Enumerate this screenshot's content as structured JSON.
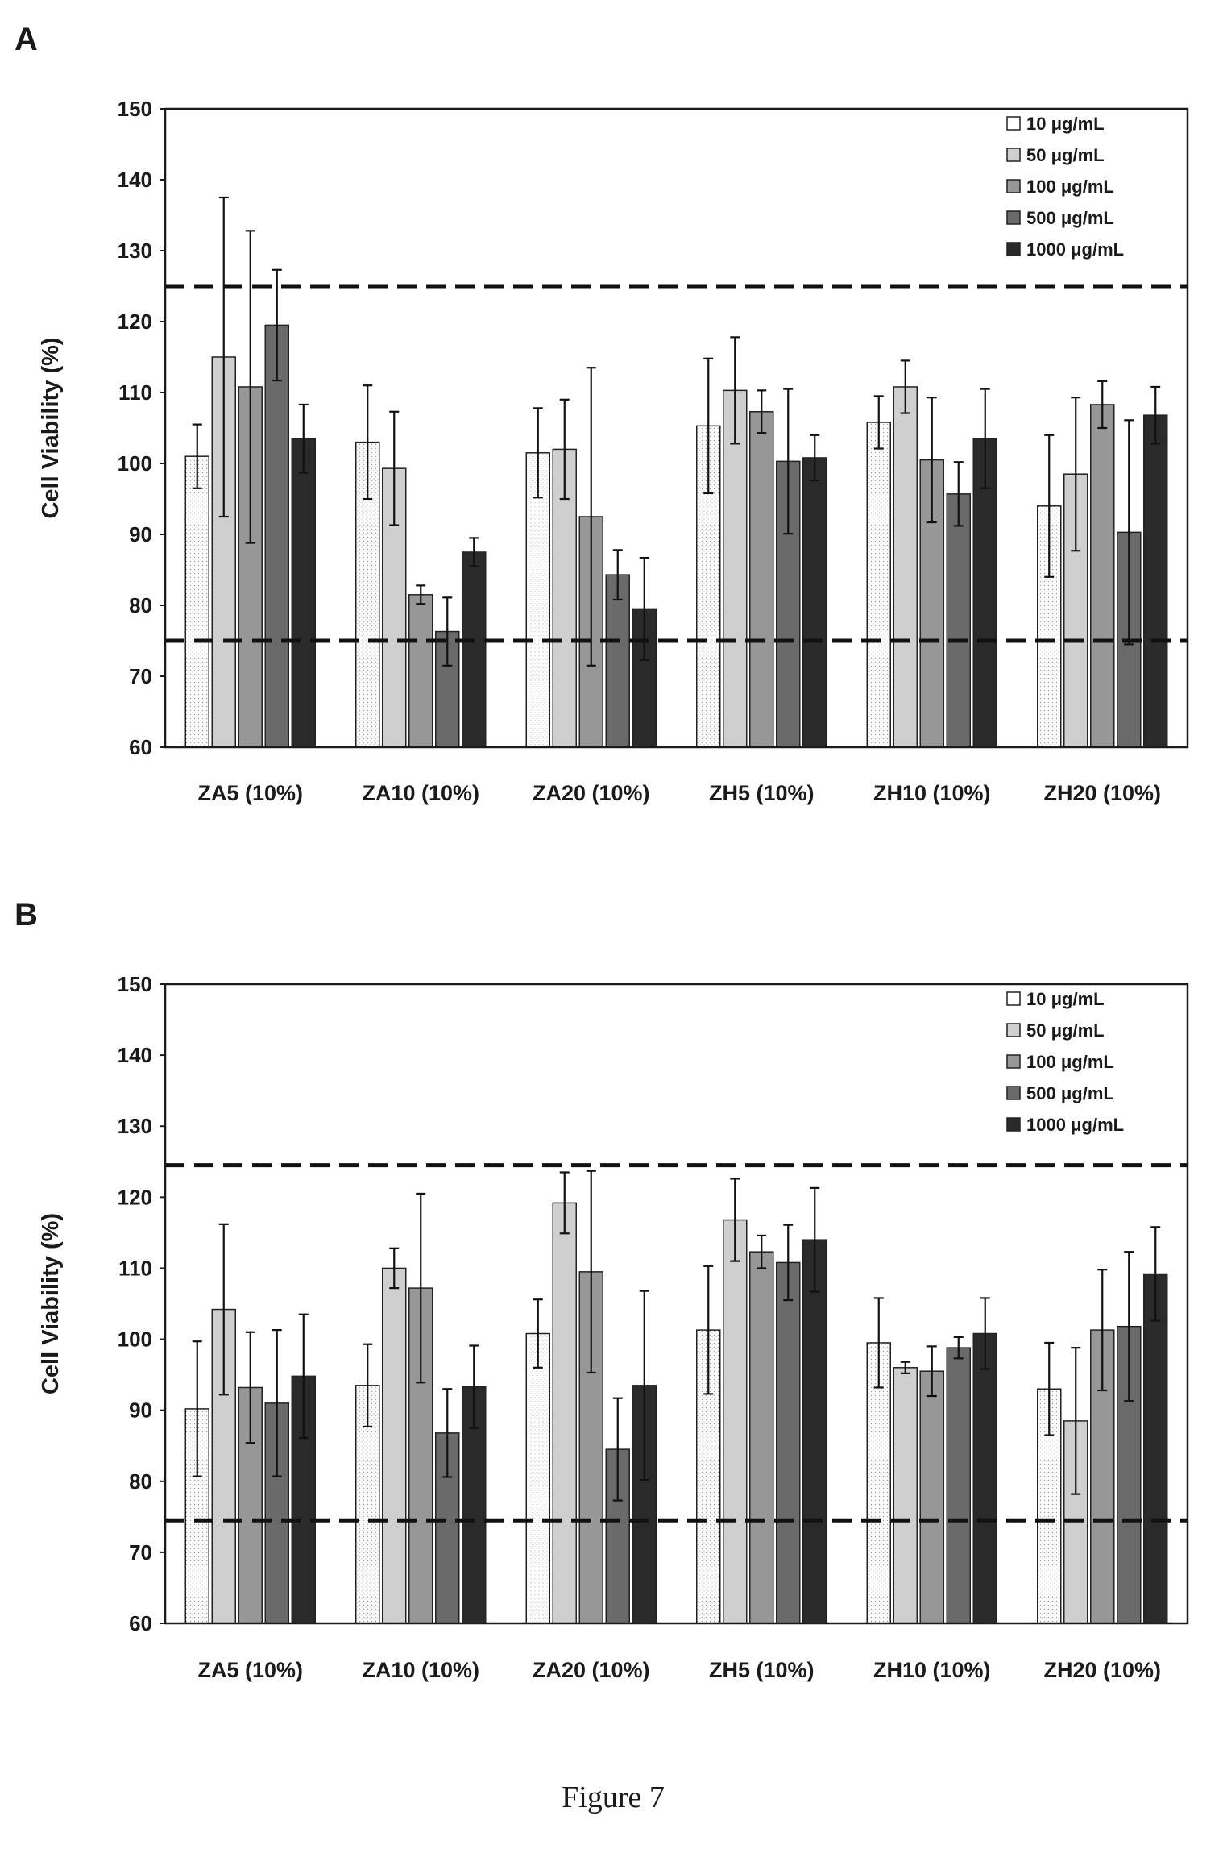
{
  "caption": "Figure 7",
  "colors": {
    "series": [
      "#ffffff",
      "#cfcfcf",
      "#979797",
      "#6a6a6a",
      "#2a2a2a"
    ],
    "axis": "#1a1a1a",
    "threshold_line": "#111111"
  },
  "chart_data": [
    {
      "panel": "A",
      "type": "bar",
      "ylabel": "Cell Viability (%)",
      "ylim": [
        60,
        150
      ],
      "yticks": [
        60,
        70,
        80,
        90,
        100,
        110,
        120,
        130,
        140,
        150
      ],
      "grid": false,
      "legend_position": "top-right",
      "categories": [
        "ZA5 (10%)",
        "ZA10 (10%)",
        "ZA20 (10%)",
        "ZH5 (10%)",
        "ZH10 (10%)",
        "ZH20 (10%)"
      ],
      "reference_lines": [
        125,
        75
      ],
      "series": [
        {
          "name": "10 μg/mL",
          "values": [
            101,
            103,
            101.5,
            105.3,
            105.8,
            94
          ],
          "errors": [
            4.5,
            8,
            6.3,
            9.5,
            3.7,
            10
          ]
        },
        {
          "name": "50 μg/mL",
          "values": [
            115,
            99.3,
            102,
            110.3,
            110.8,
            98.5
          ],
          "errors": [
            22.5,
            8,
            7,
            7.5,
            3.7,
            10.8
          ]
        },
        {
          "name": "100 μg/mL",
          "values": [
            110.8,
            81.5,
            92.5,
            107.3,
            100.5,
            108.3
          ],
          "errors": [
            22,
            1.3,
            21,
            3,
            8.8,
            3.3
          ]
        },
        {
          "name": "500 μg/mL",
          "values": [
            119.5,
            76.3,
            84.3,
            100.3,
            95.7,
            90.3
          ],
          "errors": [
            7.8,
            4.8,
            3.5,
            10.2,
            4.5,
            15.8
          ]
        },
        {
          "name": "1000 μg/mL",
          "values": [
            103.5,
            87.5,
            79.5,
            100.8,
            103.5,
            106.8
          ],
          "errors": [
            4.8,
            2,
            7.2,
            3.2,
            7,
            4
          ]
        }
      ]
    },
    {
      "panel": "B",
      "type": "bar",
      "ylabel": "Cell Viability (%)",
      "ylim": [
        60,
        150
      ],
      "yticks": [
        60,
        70,
        80,
        90,
        100,
        110,
        120,
        130,
        140,
        150
      ],
      "grid": false,
      "legend_position": "top-right",
      "categories": [
        "ZA5 (10%)",
        "ZA10 (10%)",
        "ZA20 (10%)",
        "ZH5 (10%)",
        "ZH10 (10%)",
        "ZH20 (10%)"
      ],
      "reference_lines": [
        124.5,
        74.5
      ],
      "series": [
        {
          "name": "10 μg/mL",
          "values": [
            90.2,
            93.5,
            100.8,
            101.3,
            99.5,
            93
          ],
          "errors": [
            9.5,
            5.8,
            4.8,
            9,
            6.3,
            6.5
          ]
        },
        {
          "name": "50 μg/mL",
          "values": [
            104.2,
            110,
            119.2,
            116.8,
            96,
            88.5
          ],
          "errors": [
            12,
            2.8,
            4.3,
            5.8,
            0.8,
            10.3
          ]
        },
        {
          "name": "100 μg/mL",
          "values": [
            93.2,
            107.2,
            109.5,
            112.3,
            95.5,
            101.3
          ],
          "errors": [
            7.8,
            13.3,
            14.2,
            2.3,
            3.5,
            8.5
          ]
        },
        {
          "name": "500 μg/mL",
          "values": [
            91,
            86.8,
            84.5,
            110.8,
            98.8,
            101.8
          ],
          "errors": [
            10.3,
            6.2,
            7.2,
            5.3,
            1.5,
            10.5
          ]
        },
        {
          "name": "1000 μg/mL",
          "values": [
            94.8,
            93.3,
            93.5,
            114,
            100.8,
            109.2
          ],
          "errors": [
            8.7,
            5.8,
            13.3,
            7.3,
            5,
            6.6
          ]
        }
      ]
    }
  ]
}
